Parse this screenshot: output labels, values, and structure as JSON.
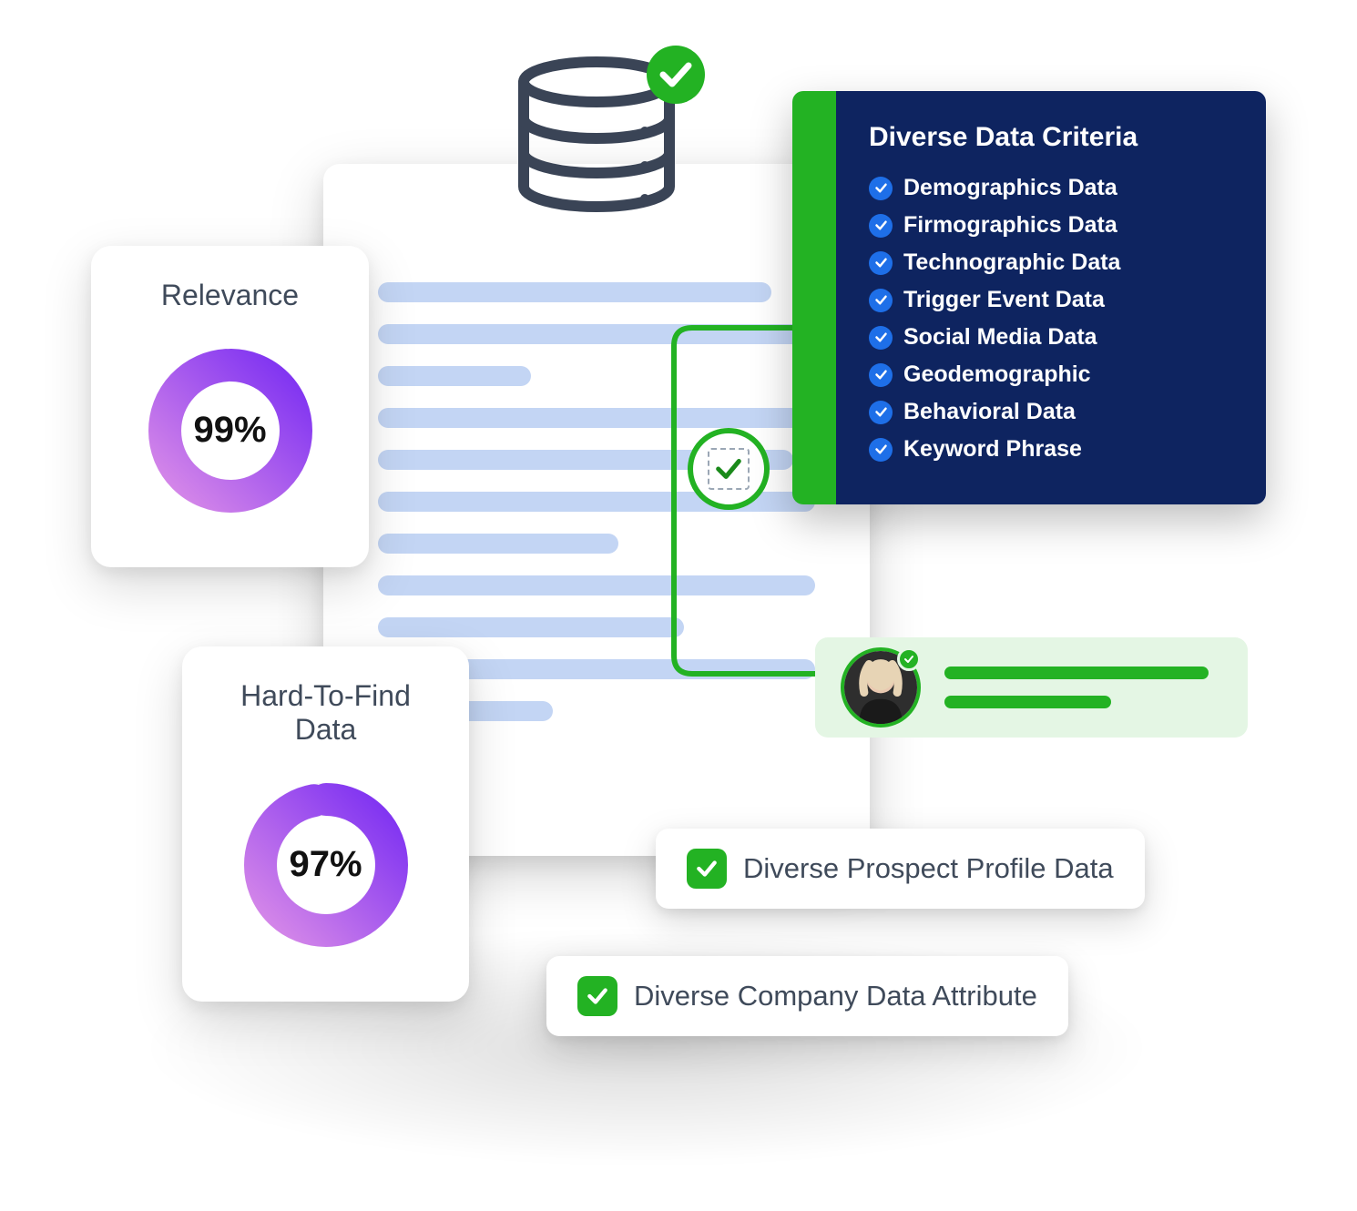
{
  "colors": {
    "accent_green": "#23b223",
    "accent_green_light": "#e4f6e4",
    "accent_blue_bullet": "#1e6fe8",
    "dark_navy": "#0e2460",
    "text_gray": "#3f4a5a",
    "doc_line": "#c3d5f4",
    "donut_start": "#d98be8",
    "donut_end": "#7b2ff2",
    "db_stroke": "#3a4456",
    "white": "#ffffff"
  },
  "document": {
    "line_widths_pct": [
      90,
      100,
      35,
      100,
      95,
      100,
      55,
      100,
      70,
      100,
      40
    ],
    "line_color": "#c3d5f4"
  },
  "database_icon": {
    "stroke": "#3a4456",
    "check_bg": "#23b223"
  },
  "relevance_card": {
    "title": "Relevance",
    "percent": 99,
    "percent_label": "99%",
    "gradient_start": "#d98be8",
    "gradient_end": "#7b2ff2",
    "ring_thickness": 36
  },
  "hard_to_find_card": {
    "title": "Hard-To-Find Data",
    "percent": 97,
    "percent_label": "97%",
    "gradient_start": "#d98be8",
    "gradient_end": "#7b2ff2",
    "ring_thickness": 36
  },
  "criteria_panel": {
    "title": "Diverse Data Criteria",
    "bar_color": "#23b223",
    "body_color": "#0e2460",
    "bullet_bg": "#1e6fe8",
    "items": [
      "Demographics Data",
      "Firmographics Data",
      "Technographic Data",
      "Trigger Event Data",
      "Social Media Data",
      "Geodemographic",
      "Behavioral Data",
      "Keyword Phrase"
    ]
  },
  "center_check": {
    "ring_color": "#23b223",
    "tick_color": "#1a8a1a"
  },
  "connector": {
    "stroke": "#23b223",
    "stroke_width": 6
  },
  "contact_pill": {
    "bg": "#e4f6e4",
    "avatar_border": "#23b223",
    "badge_bg": "#23b223",
    "badge_border": "#e4f6e4",
    "line_color": "#23b223",
    "line_widths_pct": [
      95,
      60
    ]
  },
  "feature_pills": {
    "check_bg": "#23b223",
    "items": [
      "Diverse Prospect Profile Data",
      "Diverse Company Data Attribute"
    ]
  }
}
